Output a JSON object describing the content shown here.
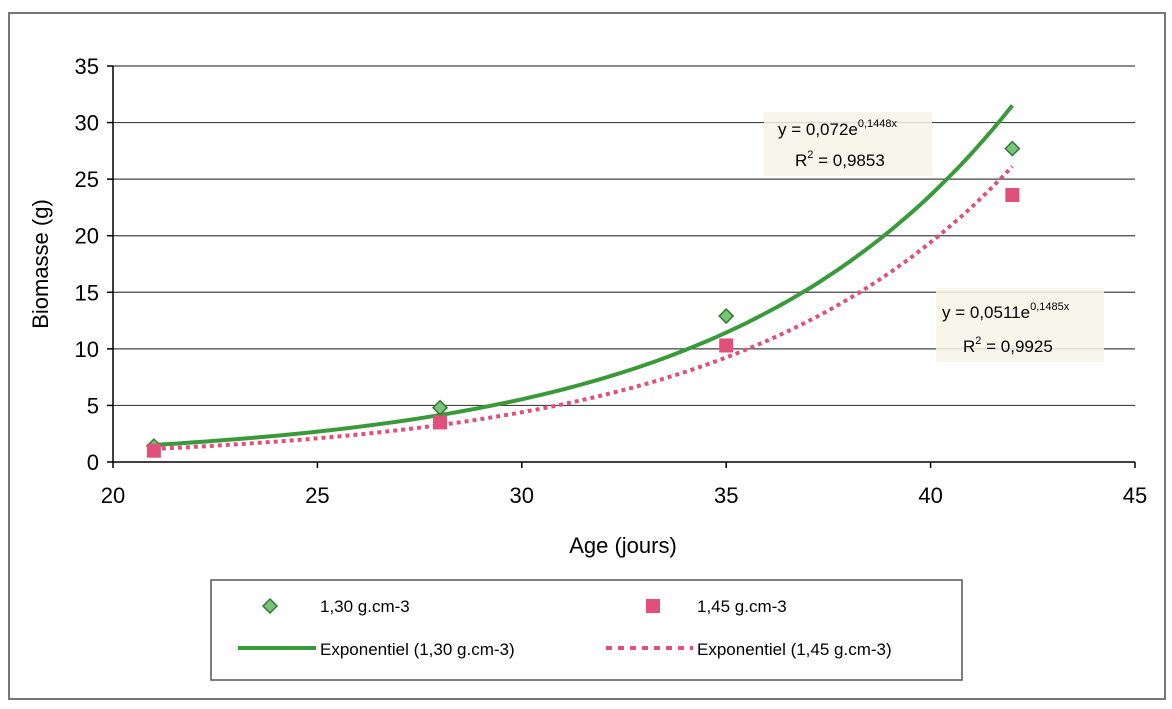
{
  "chart_data": {
    "type": "scatter",
    "xlabel": "Age (jours)",
    "ylabel": "Biomasse (g)",
    "xlim": [
      20,
      45
    ],
    "ylim": [
      0,
      35
    ],
    "x_ticks": [
      "20",
      "25",
      "30",
      "35",
      "40",
      "45"
    ],
    "y_ticks": [
      "0",
      "5",
      "10",
      "15",
      "20",
      "25",
      "30",
      "35"
    ],
    "grid": "horizontal",
    "legend_position": "bottom",
    "series": [
      {
        "name": "1,30 g.cm-3",
        "marker": "diamond",
        "color": "#3a9a3a",
        "x": [
          21,
          28,
          35,
          42
        ],
        "y": [
          1.4,
          4.8,
          12.9,
          27.7
        ]
      },
      {
        "name": "1,45 g.cm-3",
        "marker": "square",
        "color": "#e0507a",
        "x": [
          21,
          28,
          35,
          42
        ],
        "y": [
          1.0,
          3.5,
          10.3,
          23.6
        ]
      }
    ],
    "trendlines": [
      {
        "name": "Exponentiel (1,30 g.cm-3)",
        "a": 0.072,
        "b": 0.1448,
        "color": "#3a9a3a",
        "style": "solid",
        "equation_prefix": "y = 0,072e",
        "equation_exponent": "0,1448x",
        "r2_prefix": "R",
        "r2_exponent": "2",
        "r2_value": " = 0,9853"
      },
      {
        "name": "Exponentiel (1,45 g.cm-3)",
        "a": 0.0511,
        "b": 0.1485,
        "color": "#e0507a",
        "style": "dotted",
        "equation_prefix": "y = 0,0511e",
        "equation_exponent": "0,1485x",
        "r2_prefix": "R",
        "r2_exponent": "2",
        "r2_value": " = 0,9925"
      }
    ]
  }
}
